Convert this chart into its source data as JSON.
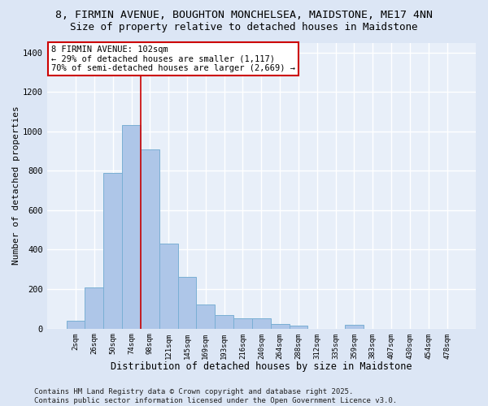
{
  "title1": "8, FIRMIN AVENUE, BOUGHTON MONCHELSEA, MAIDSTONE, ME17 4NN",
  "title2": "Size of property relative to detached houses in Maidstone",
  "xlabel": "Distribution of detached houses by size in Maidstone",
  "ylabel": "Number of detached properties",
  "categories": [
    "2sqm",
    "26sqm",
    "50sqm",
    "74sqm",
    "98sqm",
    "121sqm",
    "145sqm",
    "169sqm",
    "193sqm",
    "216sqm",
    "240sqm",
    "264sqm",
    "288sqm",
    "312sqm",
    "335sqm",
    "359sqm",
    "383sqm",
    "407sqm",
    "430sqm",
    "454sqm",
    "478sqm"
  ],
  "values": [
    40,
    210,
    790,
    1030,
    910,
    430,
    260,
    120,
    70,
    50,
    50,
    25,
    15,
    0,
    0,
    20,
    0,
    0,
    0,
    0,
    0
  ],
  "bar_color": "#aec6e8",
  "bar_edge_color": "#7aafd4",
  "vline_index": 4,
  "vline_color": "#cc0000",
  "annotation_line1": "8 FIRMIN AVENUE: 102sqm",
  "annotation_line2": "← 29% of detached houses are smaller (1,117)",
  "annotation_line3": "70% of semi-detached houses are larger (2,669) →",
  "annotation_box_edge": "#cc0000",
  "bg_color": "#e8eff9",
  "grid_color": "#ffffff",
  "fig_bg_color": "#dce6f5",
  "ylim": [
    0,
    1450
  ],
  "yticks": [
    0,
    200,
    400,
    600,
    800,
    1000,
    1200,
    1400
  ],
  "footer": "Contains HM Land Registry data © Crown copyright and database right 2025.\nContains public sector information licensed under the Open Government Licence v3.0.",
  "title1_fontsize": 9.5,
  "title2_fontsize": 9,
  "annot_fontsize": 7.5,
  "footer_fontsize": 6.5,
  "ylabel_fontsize": 8,
  "xlabel_fontsize": 8.5
}
